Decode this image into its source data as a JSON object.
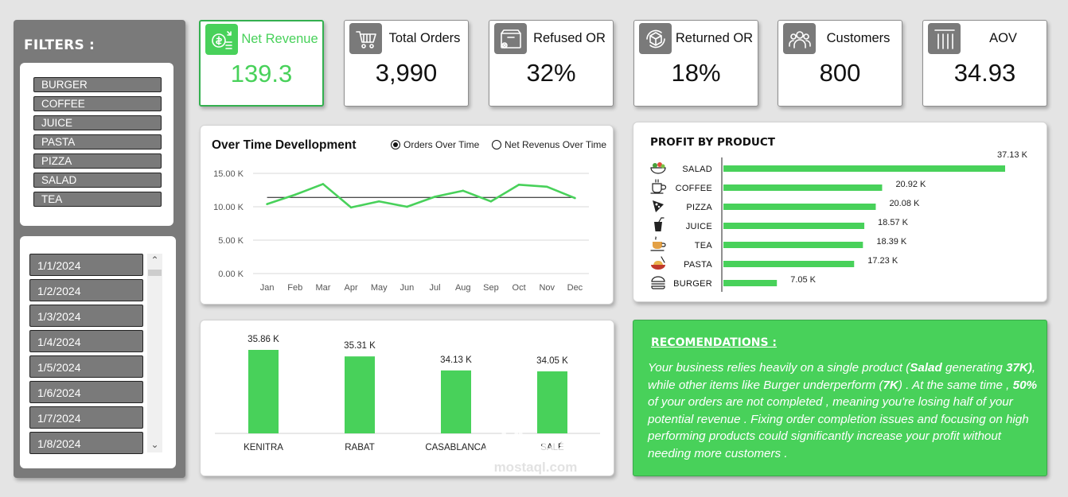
{
  "filters": {
    "title": "FILTERS :",
    "products": [
      "BURGER",
      "COFFEE",
      "JUICE",
      "PASTA",
      "PIZZA",
      "SALAD",
      "TEA"
    ],
    "dates": [
      "1/1/2024",
      "1/2/2024",
      "1/3/2024",
      "1/4/2024",
      "1/5/2024",
      "1/6/2024",
      "1/7/2024",
      "1/8/2024"
    ],
    "scroll_up": "⌃",
    "scroll_down": "⌄"
  },
  "kpis": [
    {
      "label": "Net Revenue",
      "value": "139.3",
      "icon": "money-icon",
      "active": true
    },
    {
      "label": "Total Orders",
      "value": "3,990",
      "icon": "cart-icon",
      "active": false
    },
    {
      "label": "Refused OR",
      "value": "32%",
      "icon": "box-x-icon",
      "active": false
    },
    {
      "label": "Returned OR",
      "value": "18%",
      "icon": "return-icon",
      "active": false
    },
    {
      "label": "Customers",
      "value": "800",
      "icon": "people-icon",
      "active": false
    },
    {
      "label": "AOV",
      "value": "34.93",
      "icon": "bars-icon",
      "active": false
    }
  ],
  "over_time": {
    "title": "Over Time Devellopment",
    "option_orders": "Orders Over Time",
    "option_revenue": "Net Revenus Over Time"
  },
  "profit": {
    "title": "PROFIT BY PRODUCT"
  },
  "recommendations": {
    "title": "RECOMENDATIONS :",
    "p1": "Your business relies heavily on a single product (",
    "b1": "Salad",
    "p2": " generating ",
    "b2": "37K)",
    "p3": ", while other items like Burger underperform (",
    "b3": "7K",
    "p4": ") . At the same time , ",
    "b4": "50%",
    "p5": " of your orders are not completed , meaning you're losing half of your potential revenue . Fixing order completion issues and focusing on high performing products could significantly increase your profit without needing more customers ."
  },
  "watermark": {
    "arabic": "مستقل",
    "latin": "mostaql.com"
  },
  "colors": {
    "accent": "#48d15a",
    "panel": "#7a7a7a"
  },
  "chart_data": [
    {
      "type": "line",
      "x": [
        "Jan",
        "Feb",
        "Mar",
        "Apr",
        "May",
        "Jun",
        "Jul",
        "Aug",
        "Sep",
        "Oct",
        "Nov",
        "Dec"
      ],
      "series": [
        {
          "name": "Orders Over Time",
          "values": [
            10.4,
            11.8,
            13.4,
            9.9,
            10.8,
            10.0,
            11.5,
            12.4,
            10.8,
            13.3,
            13.0,
            11.3
          ]
        }
      ],
      "reference_line": 11.4,
      "ytick_labels": [
        "0.00 K",
        "5.00 K",
        "10.00 K",
        "15.00 K"
      ],
      "ylim": [
        0,
        15
      ],
      "grid": true
    },
    {
      "type": "bar",
      "orientation": "horizontal",
      "title": "PROFIT BY PRODUCT",
      "categories": [
        "SALAD",
        "COFFEE",
        "PIZZA",
        "JUICE",
        "TEA",
        "PASTA",
        "BURGER"
      ],
      "values": [
        37.13,
        20.92,
        20.08,
        18.57,
        18.39,
        17.23,
        7.05
      ],
      "labels": [
        "37.13 K",
        "20.92 K",
        "20.08 K",
        "18.57 K",
        "18.39 K",
        "17.23 K",
        "7.05 K"
      ],
      "icons": [
        "salad-icon",
        "coffee-icon",
        "pizza-icon",
        "juice-icon",
        "tea-icon",
        "pasta-icon",
        "burger-icon"
      ]
    },
    {
      "type": "bar",
      "categories": [
        "KENITRA",
        "RABAT",
        "CASABLANCA",
        "SALÉ"
      ],
      "values": [
        35.86,
        35.31,
        34.13,
        34.05
      ],
      "labels": [
        "35.86 K",
        "35.31 K",
        "34.13 K",
        "34.05 K"
      ]
    }
  ]
}
